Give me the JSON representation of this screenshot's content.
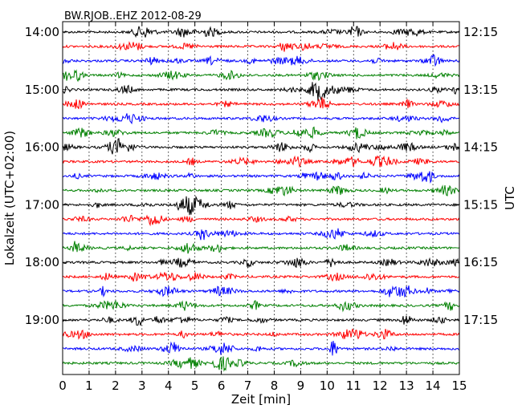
{
  "chart_data": {
    "type": "line",
    "title": "BW.RJOB..EHZ 2012-08-29",
    "xlabel": "Zeit  [min]",
    "ylabel_left": "Lokalzeit (UTC+02:00)",
    "ylabel_right": "UTC",
    "xlim": [
      0,
      15
    ],
    "x_ticks": [
      0,
      1,
      2,
      3,
      4,
      5,
      6,
      7,
      8,
      9,
      10,
      11,
      12,
      13,
      14,
      15
    ],
    "grid": "vertical dotted",
    "trace_interval_min": 15,
    "trace_count": 24,
    "colors": [
      "#000000",
      "#ff0000",
      "#0000ff",
      "#008000"
    ],
    "left_ticks": [
      {
        "trace": 0,
        "label": "14:00"
      },
      {
        "trace": 4,
        "label": "15:00"
      },
      {
        "trace": 8,
        "label": "16:00"
      },
      {
        "trace": 12,
        "label": "17:00"
      },
      {
        "trace": 16,
        "label": "18:00"
      },
      {
        "trace": 20,
        "label": "19:00"
      }
    ],
    "right_ticks": [
      {
        "trace": 0,
        "label": "12:15"
      },
      {
        "trace": 4,
        "label": "13:15"
      },
      {
        "trace": 8,
        "label": "14:15"
      },
      {
        "trace": 12,
        "label": "15:15"
      },
      {
        "trace": 16,
        "label": "16:15"
      },
      {
        "trace": 20,
        "label": "17:15"
      }
    ]
  }
}
